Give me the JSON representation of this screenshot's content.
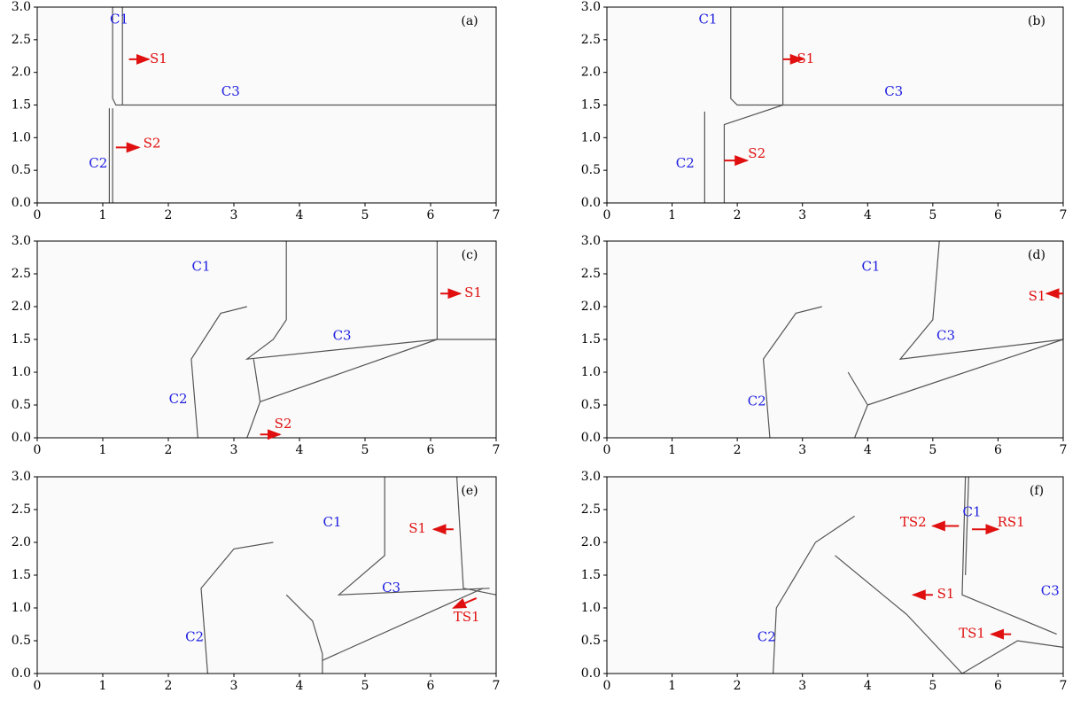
{
  "axes": {
    "xlim": [
      0,
      7
    ],
    "ylim": [
      0,
      3
    ],
    "xticks": [
      0,
      1,
      2,
      3,
      4,
      5,
      6,
      7
    ],
    "yticks": [
      {
        "value": 0,
        "label": "0.0"
      },
      0.5,
      {
        "value": 1,
        "label": "1.0"
      },
      1.5,
      {
        "value": 2,
        "label": "2.0"
      },
      2.5,
      {
        "value": 3,
        "label": "3.0"
      }
    ]
  },
  "panels": [
    {
      "label": "(a)",
      "annotations": [
        {
          "text": "C1",
          "color": "#2020e0"
        },
        {
          "text": "S1",
          "color": "#e01010"
        },
        {
          "text": "C3",
          "color": "#2020e0"
        },
        {
          "text": "S2",
          "color": "#e01010"
        },
        {
          "text": "C2",
          "color": "#2020e0"
        }
      ]
    },
    {
      "label": "(b)",
      "annotations": [
        {
          "text": "C1",
          "color": "#2020e0"
        },
        {
          "text": "S1",
          "color": "#e01010"
        },
        {
          "text": "C3",
          "color": "#2020e0"
        },
        {
          "text": "S2",
          "color": "#e01010"
        },
        {
          "text": "C2",
          "color": "#2020e0"
        }
      ]
    },
    {
      "label": "(c)",
      "annotations": [
        {
          "text": "C1",
          "color": "#2020e0"
        },
        {
          "text": "S1",
          "color": "#e01010"
        },
        {
          "text": "C3",
          "color": "#2020e0"
        },
        {
          "text": "S2",
          "color": "#e01010"
        },
        {
          "text": "C2",
          "color": "#2020e0"
        }
      ]
    },
    {
      "label": "(d)",
      "annotations": [
        {
          "text": "C1",
          "color": "#2020e0"
        },
        {
          "text": "S1",
          "color": "#e01010"
        },
        {
          "text": "C3",
          "color": "#2020e0"
        },
        {
          "text": "C2",
          "color": "#2020e0"
        }
      ]
    },
    {
      "label": "(e)",
      "annotations": [
        {
          "text": "C1",
          "color": "#2020e0"
        },
        {
          "text": "S1",
          "color": "#e01010"
        },
        {
          "text": "C3",
          "color": "#2020e0"
        },
        {
          "text": "TS1",
          "color": "#e01010"
        },
        {
          "text": "C2",
          "color": "#2020e0"
        }
      ]
    },
    {
      "label": "(f)",
      "annotations": [
        {
          "text": "TS2",
          "color": "#e01010"
        },
        {
          "text": "C1",
          "color": "#2020e0"
        },
        {
          "text": "RS1",
          "color": "#e01010"
        },
        {
          "text": "S1",
          "color": "#e01010"
        },
        {
          "text": "C3",
          "color": "#2020e0"
        },
        {
          "text": "TS1",
          "color": "#e01010"
        },
        {
          "text": "C2",
          "color": "#2020e0"
        }
      ]
    }
  ]
}
